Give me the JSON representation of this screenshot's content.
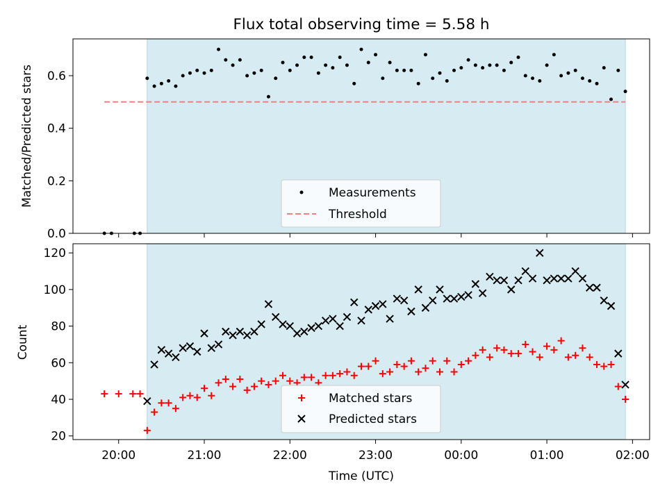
{
  "figure": {
    "title": "Flux total observing time = 5.58 h"
  },
  "chart_data": [
    {
      "type": "scatter",
      "title": "Flux total observing time = 5.58 h",
      "xlabel": "",
      "ylabel": "Matched/Predicted stars",
      "x_ticks": [
        "20:00",
        "21:00",
        "22:00",
        "23:00",
        "00:00",
        "01:00",
        "02:00"
      ],
      "y_ticks": [
        "0.0",
        "0.2",
        "0.4",
        "0.6"
      ],
      "xlim": [
        "19:28",
        "02:12"
      ],
      "ylim": [
        0,
        0.74
      ],
      "observing_window": [
        "20:20",
        "01:55"
      ],
      "threshold": {
        "name": "Threshold",
        "value": 0.5,
        "x_start": "19:50",
        "x_end": "01:55",
        "color": "#f08080"
      },
      "series": [
        {
          "name": "Measurements",
          "marker": "dot",
          "color": "#000000",
          "x": [
            "19:50",
            "19:55",
            "20:11",
            "20:15",
            "20:20",
            "20:25",
            "20:30",
            "20:35",
            "20:40",
            "20:45",
            "20:50",
            "20:55",
            "21:00",
            "21:05",
            "21:10",
            "21:15",
            "21:20",
            "21:25",
            "21:30",
            "21:35",
            "21:40",
            "21:45",
            "21:50",
            "21:55",
            "22:00",
            "22:05",
            "22:10",
            "22:15",
            "22:20",
            "22:25",
            "22:30",
            "22:35",
            "22:40",
            "22:45",
            "22:50",
            "22:55",
            "23:00",
            "23:05",
            "23:10",
            "23:15",
            "23:20",
            "23:25",
            "23:30",
            "23:35",
            "23:40",
            "23:45",
            "23:50",
            "23:55",
            "00:00",
            "00:05",
            "00:10",
            "00:15",
            "00:20",
            "00:25",
            "00:30",
            "00:35",
            "00:40",
            "00:45",
            "00:50",
            "00:55",
            "01:00",
            "01:05",
            "01:10",
            "01:15",
            "01:20",
            "01:25",
            "01:30",
            "01:35",
            "01:40",
            "01:45",
            "01:50",
            "01:55"
          ],
          "y": [
            0.0,
            0.0,
            0.0,
            0.0,
            0.59,
            0.56,
            0.57,
            0.58,
            0.56,
            0.6,
            0.61,
            0.62,
            0.61,
            0.62,
            0.7,
            0.66,
            0.64,
            0.66,
            0.6,
            0.61,
            0.62,
            0.52,
            0.59,
            0.65,
            0.62,
            0.64,
            0.67,
            0.67,
            0.61,
            0.64,
            0.63,
            0.67,
            0.64,
            0.57,
            0.7,
            0.65,
            0.68,
            0.59,
            0.65,
            0.62,
            0.62,
            0.62,
            0.57,
            0.68,
            0.59,
            0.61,
            0.58,
            0.62,
            0.63,
            0.66,
            0.64,
            0.63,
            0.64,
            0.64,
            0.62,
            0.65,
            0.67,
            0.6,
            0.59,
            0.58,
            0.64,
            0.68,
            0.6,
            0.61,
            0.62,
            0.59,
            0.58,
            0.57,
            0.63,
            0.51,
            0.62,
            0.54
          ]
        }
      ],
      "legend": {
        "position": "lower-center"
      }
    },
    {
      "type": "scatter",
      "xlabel": "Time (UTC)",
      "ylabel": "Count",
      "x_ticks": [
        "20:00",
        "21:00",
        "22:00",
        "23:00",
        "00:00",
        "01:00",
        "02:00"
      ],
      "y_ticks": [
        "20",
        "40",
        "60",
        "80",
        "100",
        "120"
      ],
      "xlim": [
        "19:28",
        "02:12"
      ],
      "ylim": [
        18,
        125
      ],
      "observing_window": [
        "20:20",
        "01:55"
      ],
      "series": [
        {
          "name": "Matched stars",
          "marker": "plus",
          "color": "#ff0000",
          "x": [
            "19:50",
            "20:00",
            "20:10",
            "20:15",
            "20:20",
            "20:25",
            "20:30",
            "20:35",
            "20:40",
            "20:45",
            "20:50",
            "20:55",
            "21:00",
            "21:05",
            "21:10",
            "21:15",
            "21:20",
            "21:25",
            "21:30",
            "21:35",
            "21:40",
            "21:45",
            "21:50",
            "21:55",
            "22:00",
            "22:05",
            "22:10",
            "22:15",
            "22:20",
            "22:25",
            "22:30",
            "22:35",
            "22:40",
            "22:45",
            "22:50",
            "22:55",
            "23:00",
            "23:05",
            "23:10",
            "23:15",
            "23:20",
            "23:25",
            "23:30",
            "23:35",
            "23:40",
            "23:45",
            "23:50",
            "23:55",
            "00:00",
            "00:05",
            "00:10",
            "00:15",
            "00:20",
            "00:25",
            "00:30",
            "00:35",
            "00:40",
            "00:45",
            "00:50",
            "00:55",
            "01:00",
            "01:05",
            "01:10",
            "01:15",
            "01:20",
            "01:25",
            "01:30",
            "01:35",
            "01:40",
            "01:45",
            "01:50",
            "01:55"
          ],
          "y": [
            43,
            43,
            43,
            43,
            23,
            33,
            38,
            38,
            35,
            41,
            42,
            41,
            46,
            42,
            49,
            51,
            47,
            51,
            45,
            47,
            50,
            48,
            50,
            53,
            50,
            49,
            52,
            52,
            49,
            53,
            53,
            54,
            55,
            53,
            58,
            58,
            61,
            54,
            55,
            59,
            58,
            61,
            55,
            57,
            61,
            55,
            61,
            55,
            59,
            61,
            64,
            67,
            63,
            68,
            67,
            65,
            65,
            70,
            66,
            63,
            69,
            67,
            72,
            63,
            64,
            68,
            63,
            59,
            58,
            59,
            47,
            40
          ]
        },
        {
          "name": "Predicted stars",
          "marker": "x",
          "color": "#000000",
          "x": [
            "20:20",
            "20:25",
            "20:30",
            "20:35",
            "20:40",
            "20:45",
            "20:50",
            "20:55",
            "21:00",
            "21:05",
            "21:10",
            "21:15",
            "21:20",
            "21:25",
            "21:30",
            "21:35",
            "21:40",
            "21:45",
            "21:50",
            "21:55",
            "22:00",
            "22:05",
            "22:10",
            "22:15",
            "22:20",
            "22:25",
            "22:30",
            "22:35",
            "22:40",
            "22:45",
            "22:50",
            "22:55",
            "23:00",
            "23:05",
            "23:10",
            "23:15",
            "23:20",
            "23:25",
            "23:30",
            "23:35",
            "23:40",
            "23:45",
            "23:50",
            "23:55",
            "00:00",
            "00:05",
            "00:10",
            "00:15",
            "00:20",
            "00:25",
            "00:30",
            "00:35",
            "00:40",
            "00:45",
            "00:50",
            "00:55",
            "01:00",
            "01:05",
            "01:10",
            "01:15",
            "01:20",
            "01:25",
            "01:30",
            "01:35",
            "01:40",
            "01:45",
            "01:50",
            "01:55"
          ],
          "y": [
            39,
            59,
            67,
            65,
            63,
            68,
            69,
            66,
            76,
            68,
            70,
            77,
            75,
            77,
            75,
            77,
            81,
            92,
            85,
            81,
            80,
            76,
            77,
            79,
            80,
            83,
            84,
            80,
            85,
            93,
            83,
            89,
            91,
            92,
            84,
            95,
            94,
            88,
            100,
            90,
            94,
            100,
            95,
            95,
            96,
            97,
            103,
            98,
            107,
            105,
            105,
            100,
            105,
            110,
            106,
            120,
            105,
            106,
            106,
            106,
            110,
            106,
            101,
            101,
            94,
            91,
            65,
            48
          ]
        }
      ],
      "legend": {
        "position": "lower-center"
      }
    }
  ]
}
